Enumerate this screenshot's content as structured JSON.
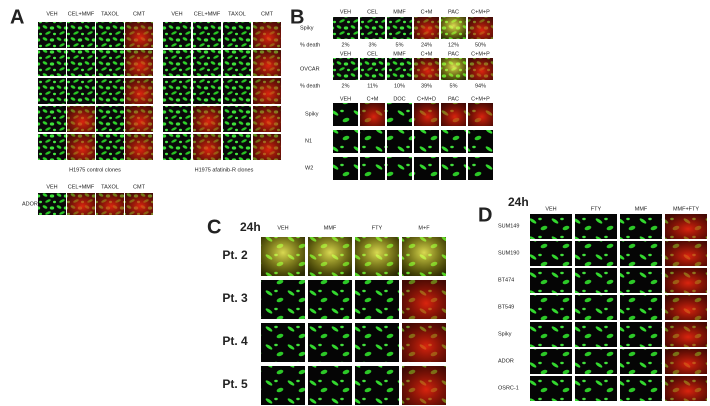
{
  "panel_a": {
    "label": "A",
    "columns_left": [
      "VEH",
      "CEL+MMF",
      "TAXOL",
      "CMT"
    ],
    "columns_right": [
      "VEH",
      "CEL+MMF",
      "TAXOL",
      "CMT"
    ],
    "caption_left": "H1975 control clones",
    "caption_right": "H1975 afatinib-R clones",
    "ador_label": "ADOR",
    "ador_columns": [
      "VEH",
      "CEL+MMF",
      "TAXOL",
      "CMT"
    ]
  },
  "panel_b": {
    "label": "B",
    "block1": {
      "row": "Spiky",
      "columns": [
        "VEH",
        "CEL",
        "MMF",
        "C+M",
        "PAC",
        "C+M+P"
      ],
      "death_label": "% death",
      "death": [
        "2%",
        "3%",
        "5%",
        "24%",
        "12%",
        "50%"
      ]
    },
    "block2": {
      "row": "OVCAR",
      "columns": [
        "VEH",
        "CEL",
        "MMF",
        "C+M",
        "PAC",
        "C+M+P"
      ],
      "death_label": "% death",
      "death": [
        "2%",
        "11%",
        "10%",
        "39%",
        "5%",
        "94%"
      ]
    },
    "block3": {
      "columns": [
        "VEH",
        "C+M",
        "DOC",
        "C+M+D",
        "PAC",
        "C+M+P"
      ],
      "rows": [
        "Spiky",
        "N1",
        "W2"
      ]
    }
  },
  "panel_c": {
    "label": "C",
    "time": "24h",
    "columns": [
      "VEH",
      "MMF",
      "FTY",
      "M+F"
    ],
    "rows": [
      "Pt. 2",
      "Pt. 3",
      "Pt. 4",
      "Pt. 5"
    ]
  },
  "panel_d": {
    "label": "D",
    "time": "24h",
    "columns": [
      "VEH",
      "FTY",
      "MMF",
      "MMF+FTY"
    ],
    "rows": [
      "SUM149",
      "SUM190",
      "BT474",
      "BT549",
      "Spiky",
      "ADOR",
      "OSRC-1"
    ]
  }
}
